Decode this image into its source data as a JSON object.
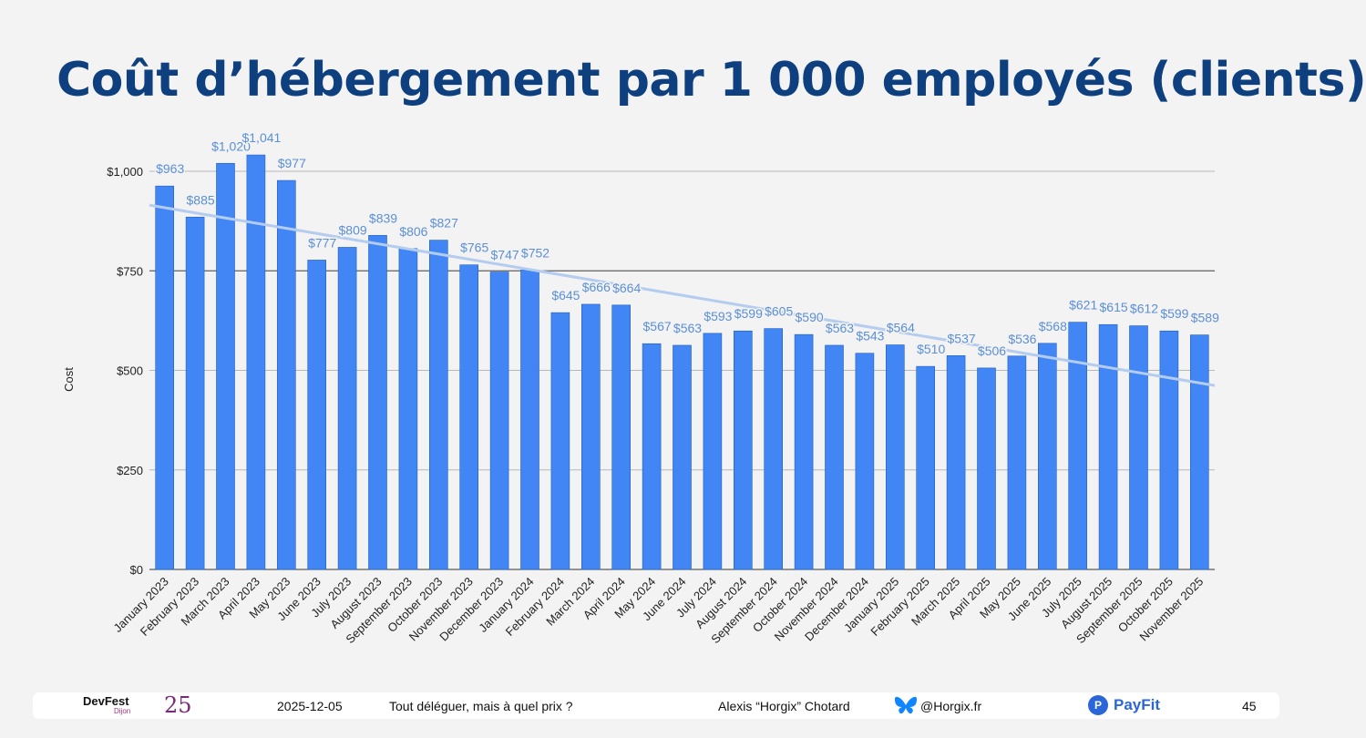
{
  "slide": {
    "title": "Coût d’hébergement par 1 000 employés (clients)"
  },
  "colors": {
    "title": "#0e3f7e",
    "bar": "#4285f4",
    "bar_edge": "#1f5fbf",
    "data_label": "#5b8fd6",
    "trendline": "#b3ccf0",
    "grid": "#b8b8b8",
    "grid_highlight": "#606060"
  },
  "chart_data": {
    "type": "bar",
    "title": "",
    "xlabel": "",
    "ylabel": "Cost",
    "ylim": [
      0,
      1100
    ],
    "yticks": [
      0,
      250,
      500,
      750,
      1000
    ],
    "ytick_labels": [
      "$0",
      "$250",
      "$500",
      "$750",
      "$1,000"
    ],
    "highlight_gridline": 750,
    "trendline": {
      "type": "linear",
      "start": 915,
      "end": 462
    },
    "categories": [
      "January 2023",
      "February 2023",
      "March 2023",
      "April 2023",
      "May 2023",
      "June 2023",
      "July 2023",
      "August 2023",
      "September 2023",
      "October 2023",
      "November 2023",
      "December 2023",
      "January 2024",
      "February 2024",
      "March 2024",
      "April 2024",
      "May 2024",
      "June 2024",
      "July 2024",
      "August 2024",
      "September 2024",
      "October 2024",
      "November 2024",
      "December 2024",
      "January 2025",
      "February 2025",
      "March 2025",
      "April 2025",
      "May 2025",
      "June 2025",
      "July 2025",
      "August 2025",
      "September 2025",
      "October 2025",
      "November 2025"
    ],
    "values": [
      963,
      885,
      1020,
      1041,
      977,
      777,
      809,
      839,
      806,
      827,
      765,
      747,
      752,
      645,
      666,
      664,
      567,
      563,
      593,
      599,
      605,
      590,
      563,
      543,
      564,
      510,
      537,
      506,
      536,
      568,
      621,
      615,
      612,
      599,
      589
    ],
    "data_labels": [
      "$963",
      "$885",
      "$1,020",
      "$1,041",
      "$977",
      "$777",
      "$809",
      "$839",
      "$806",
      "$827",
      "$765",
      "$747",
      "$752",
      "$645",
      "$666",
      "$664",
      "$567",
      "$563",
      "$593",
      "$599",
      "$605",
      "$590",
      "$563",
      "$543",
      "$564",
      "$510",
      "$537",
      "$506",
      "$536",
      "$568",
      "$621",
      "$615",
      "$612",
      "$599",
      "$589"
    ]
  },
  "footer": {
    "event_name": "DevFest",
    "event_city": "Dijon",
    "event_year": "25",
    "date": "2025-12-05",
    "talk_title": "Tout déléguer, mais à quel prix ?",
    "speaker": "Alexis “Horgix” Chotard",
    "social_icon": "bluesky-icon",
    "handle": "@Horgix.fr",
    "company": "PayFit",
    "company_icon": "payfit-icon",
    "page_number": "45"
  }
}
